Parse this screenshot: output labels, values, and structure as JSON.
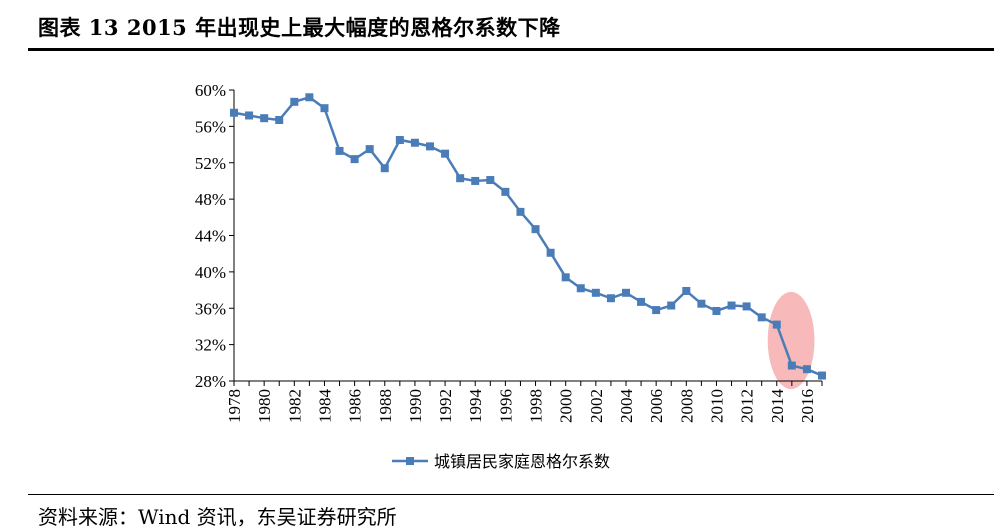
{
  "title": "图表 13 2015 年出现史上最大幅度的恩格尔系数下降",
  "source": "资料来源：Wind 资讯，东吴证券研究所",
  "chart_data": {
    "type": "line",
    "title": "",
    "xlabel": "",
    "ylabel": "",
    "ylim": [
      28,
      60
    ],
    "yticks": [
      "60%",
      "56%",
      "52%",
      "48%",
      "44%",
      "40%",
      "36%",
      "32%",
      "28%"
    ],
    "xlim": [
      1978,
      2017
    ],
    "xticks": [
      "1978",
      "1980",
      "1982",
      "1984",
      "1986",
      "1988",
      "1990",
      "1992",
      "1994",
      "1996",
      "1998",
      "2000",
      "2002",
      "2004",
      "2006",
      "2008",
      "2010",
      "2012",
      "2014",
      "2016"
    ],
    "legend_position": "bottom",
    "color": "#4a7db8",
    "highlight": {
      "x_range": [
        2013.4,
        2016.5
      ],
      "y_range": [
        28,
        37.8
      ],
      "color": "#f08080"
    },
    "series": [
      {
        "name": "城镇居民家庭恩格尔系数",
        "x": [
          1978,
          1979,
          1980,
          1981,
          1982,
          1983,
          1984,
          1985,
          1986,
          1987,
          1988,
          1989,
          1990,
          1991,
          1992,
          1993,
          1994,
          1995,
          1996,
          1997,
          1998,
          1999,
          2000,
          2001,
          2002,
          2003,
          2004,
          2005,
          2006,
          2007,
          2008,
          2009,
          2010,
          2011,
          2012,
          2013,
          2014,
          2015,
          2016,
          2017
        ],
        "values": [
          57.5,
          57.2,
          56.9,
          56.7,
          58.7,
          59.2,
          58.0,
          53.3,
          52.4,
          53.5,
          51.4,
          54.5,
          54.2,
          53.8,
          53.0,
          50.3,
          50.0,
          50.1,
          48.8,
          46.6,
          44.7,
          42.1,
          39.4,
          38.2,
          37.7,
          37.1,
          37.7,
          36.7,
          35.8,
          36.3,
          37.9,
          36.5,
          35.7,
          36.3,
          36.2,
          35.0,
          34.2,
          29.7,
          29.3,
          28.6
        ]
      }
    ]
  }
}
